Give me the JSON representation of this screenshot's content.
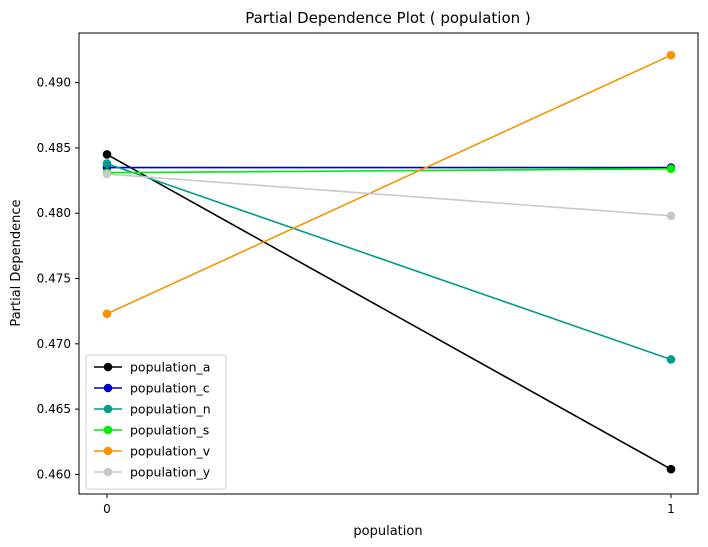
{
  "chart_data": {
    "type": "line",
    "title": "Partial Dependence Plot ( population )",
    "xlabel": "population",
    "ylabel": "Partial Dependence",
    "x": [
      0,
      1
    ],
    "x_ticks": [
      "0",
      "1"
    ],
    "ylim": [
      0.4585,
      0.4938
    ],
    "y_ticks": [
      "0.460",
      "0.465",
      "0.470",
      "0.475",
      "0.480",
      "0.485",
      "0.490"
    ],
    "legend_position": "lower-left",
    "grid": false,
    "series": [
      {
        "name": "population_a",
        "color": "#000000",
        "values": [
          0.4845,
          0.4604
        ]
      },
      {
        "name": "population_c",
        "color": "#0000cd",
        "values": [
          0.4835,
          0.4835
        ]
      },
      {
        "name": "population_n",
        "color": "#009e8a",
        "values": [
          0.4838,
          0.4688
        ]
      },
      {
        "name": "population_s",
        "color": "#00ee00",
        "values": [
          0.4831,
          0.4834
        ]
      },
      {
        "name": "population_v",
        "color": "#f59400",
        "values": [
          0.4723,
          0.4921
        ]
      },
      {
        "name": "population_y",
        "color": "#c8c8c8",
        "values": [
          0.483,
          0.4798
        ]
      }
    ]
  }
}
